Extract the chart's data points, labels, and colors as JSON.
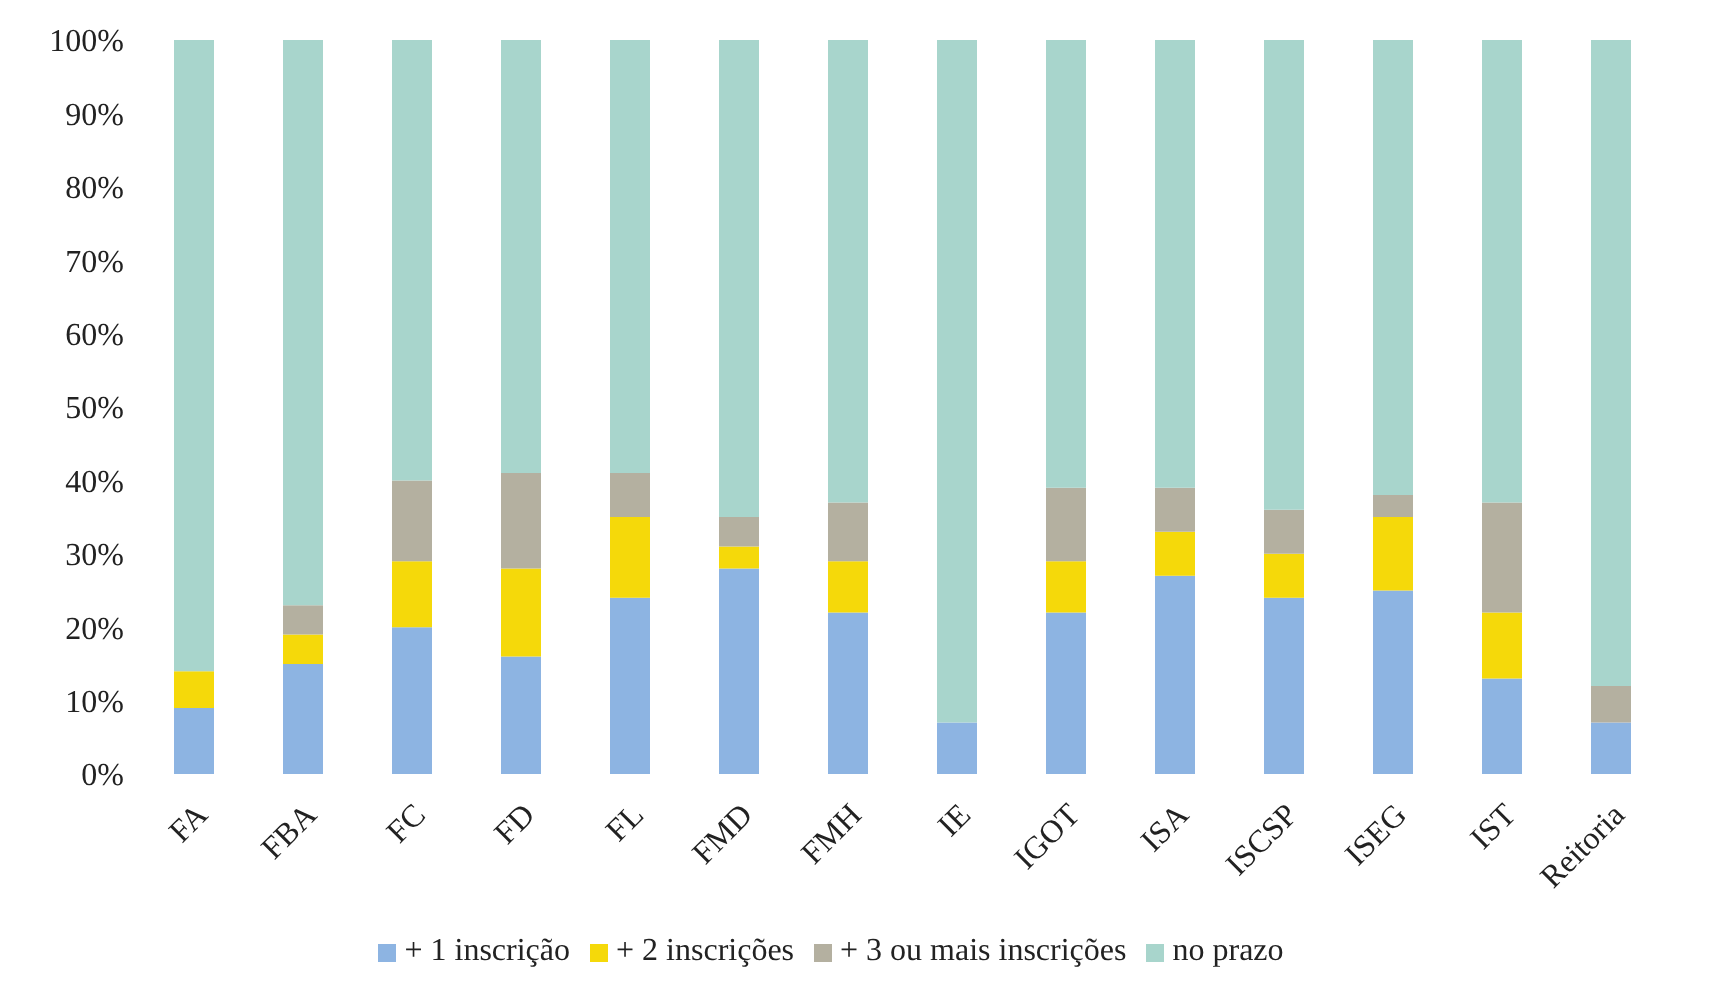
{
  "chart_data": {
    "type": "bar",
    "stacked": true,
    "categories": [
      "FA",
      "FBA",
      "FC",
      "FD",
      "FL",
      "FMD",
      "FMH",
      "IE",
      "IGOT",
      "ISA",
      "ISCSP",
      "ISEG",
      "IST",
      "Reitoria"
    ],
    "series": [
      {
        "name": "+ 1 inscrição",
        "color": "#8db4e2",
        "values": [
          9,
          15,
          20,
          16,
          24,
          28,
          22,
          7,
          22,
          27,
          24,
          25,
          13,
          7
        ]
      },
      {
        "name": "+ 2 inscrições",
        "color": "#f5d90a",
        "values": [
          5,
          4,
          9,
          12,
          11,
          3,
          7,
          0,
          7,
          6,
          6,
          10,
          9,
          0
        ]
      },
      {
        "name": "+ 3 ou mais inscrições",
        "color": "#b4b0a0",
        "values": [
          0,
          4,
          11,
          13,
          6,
          4,
          8,
          0,
          10,
          6,
          6,
          3,
          15,
          5
        ]
      },
      {
        "name": "no prazo",
        "color": "#a8d5cc",
        "values": [
          86,
          77,
          60,
          59,
          59,
          65,
          63,
          93,
          61,
          61,
          64,
          62,
          63,
          88
        ]
      }
    ],
    "ylim": [
      0,
      100
    ],
    "yticks": [
      {
        "value": 0,
        "label": "0%"
      },
      {
        "value": 10,
        "label": "10%"
      },
      {
        "value": 20,
        "label": "20%"
      },
      {
        "value": 30,
        "label": "30%"
      },
      {
        "value": 40,
        "label": "40%"
      },
      {
        "value": 50,
        "label": "50%"
      },
      {
        "value": 60,
        "label": "60%"
      },
      {
        "value": 70,
        "label": "70%"
      },
      {
        "value": 80,
        "label": "80%"
      },
      {
        "value": 90,
        "label": "90%"
      },
      {
        "value": 100,
        "label": "100%"
      }
    ],
    "grid": false,
    "legend": "bottom"
  }
}
